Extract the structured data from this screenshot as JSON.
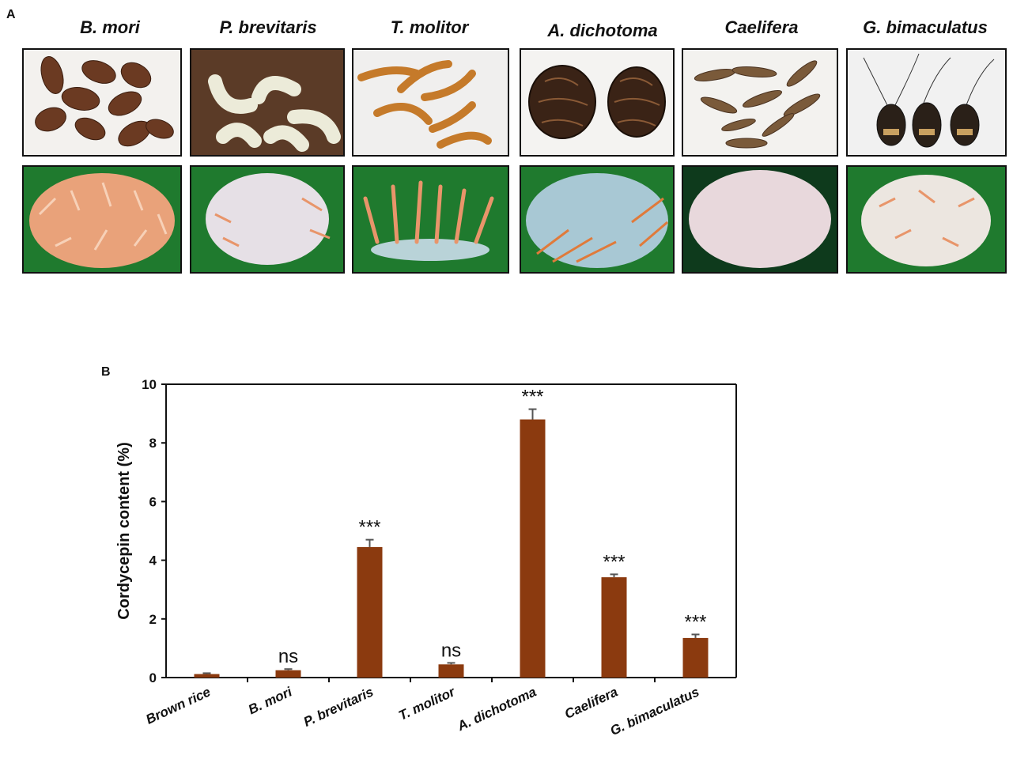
{
  "panel_a": {
    "label": "A",
    "species": [
      "B. mori",
      "P. brevitaris",
      "T. molitor",
      "A. dichotoma",
      "Caelifera",
      "G. bimaculatus"
    ]
  },
  "panel_b": {
    "label": "B"
  },
  "colors": {
    "bar": "#8B3A0F",
    "grass": "#1f7a2e",
    "fruiting_body": "#e8956a"
  },
  "chart_data": {
    "type": "bar",
    "categories": [
      "Brown rice",
      "B. mori",
      "P. brevitaris",
      "T. molitor",
      "A. dichotoma",
      "Caelifera",
      "G. bimaculatus"
    ],
    "values": [
      0.12,
      0.25,
      4.45,
      0.45,
      8.8,
      3.42,
      1.35
    ],
    "errors": [
      0.03,
      0.04,
      0.25,
      0.05,
      0.35,
      0.1,
      0.12
    ],
    "significance": [
      "",
      "ns",
      "***",
      "ns",
      "***",
      "***",
      "***"
    ],
    "ylabel": "Cordycepin content (%)",
    "xlabel": "",
    "ylim": [
      0,
      10
    ],
    "yticks": [
      0,
      2,
      4,
      6,
      8,
      10
    ]
  }
}
